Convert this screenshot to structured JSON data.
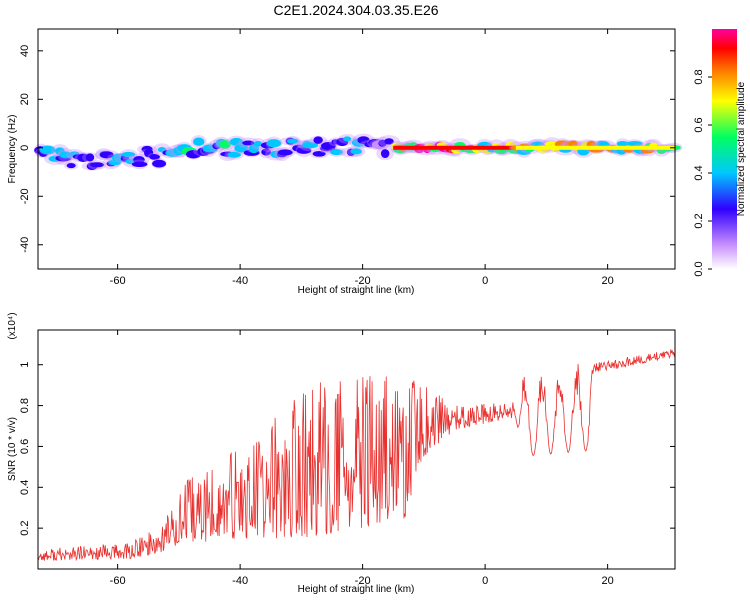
{
  "title": "C2E1.2024.304.03.35.E26",
  "chart_data": [
    {
      "type": "heatmap",
      "title": "C2E1.2024.304.03.35.E26",
      "xlabel": "Height of straight line (km)",
      "ylabel": "Frequency (Hz)",
      "xlim": [
        -73,
        31
      ],
      "ylim": [
        -50,
        49
      ],
      "xticks": [
        -60,
        -40,
        -20,
        0,
        20
      ],
      "yticks": [
        -40,
        -20,
        0,
        20,
        40
      ],
      "colorbar": {
        "label": "Normalized spectral amplitude",
        "range": [
          0.0,
          1.0
        ],
        "ticks": [
          0.0,
          0.2,
          0.4,
          0.6,
          0.8
        ],
        "colors": [
          "#ffffff",
          "#b070ff",
          "#3000ff",
          "#00c8ff",
          "#00ff60",
          "#ffff00",
          "#ff8000",
          "#ff0000",
          "#ff00a0"
        ]
      },
      "bands": [
        {
          "x0": -73,
          "x1": -50,
          "f_center": -4,
          "f_halfwidth": 6,
          "level": 0.45
        },
        {
          "x0": -50,
          "x1": -30,
          "f_center": 0,
          "f_halfwidth": 5,
          "level": 0.5
        },
        {
          "x0": -30,
          "x1": -15,
          "f_center": 1,
          "f_halfwidth": 6,
          "level": 0.45
        },
        {
          "x0": -15,
          "x1": 5,
          "f_center": 0,
          "f_halfwidth": 2,
          "level": 0.95
        },
        {
          "x0": 5,
          "x1": 31,
          "f_center": 0,
          "f_halfwidth": 3,
          "level": 0.75
        }
      ],
      "grid": false
    },
    {
      "type": "line",
      "xlabel": "Height of straight line (km)",
      "ylabel": "SNR (10 * v/v)",
      "y_multiplier": "(x10⁴)",
      "xlim": [
        -73,
        31
      ],
      "ylim": [
        0,
        1.17
      ],
      "xticks": [
        -60,
        -40,
        -20,
        0,
        20
      ],
      "yticks": [
        0.2,
        0.4,
        0.6,
        0.8,
        1.0
      ],
      "color": "#e8312f",
      "envelope": [
        {
          "x": -73,
          "base": 0.04,
          "amp": 0.06
        },
        {
          "x": -58,
          "base": 0.05,
          "amp": 0.08
        },
        {
          "x": -53,
          "base": 0.08,
          "amp": 0.14
        },
        {
          "x": -50,
          "base": 0.12,
          "amp": 0.3
        },
        {
          "x": -40,
          "base": 0.15,
          "amp": 0.45
        },
        {
          "x": -30,
          "base": 0.15,
          "amp": 0.75
        },
        {
          "x": -20,
          "base": 0.2,
          "amp": 0.75
        },
        {
          "x": -13,
          "base": 0.25,
          "amp": 0.7
        },
        {
          "x": -10,
          "base": 0.55,
          "amp": 0.35
        },
        {
          "x": -5,
          "base": 0.68,
          "amp": 0.12
        },
        {
          "x": 5,
          "base": 0.74,
          "amp": 0.08
        },
        {
          "x": 6,
          "base": 0.55,
          "amp": 0.45
        },
        {
          "x": 17,
          "base": 0.58,
          "amp": 0.45
        },
        {
          "x": 18,
          "base": 0.96,
          "amp": 0.05
        },
        {
          "x": 31,
          "base": 1.04,
          "amp": 0.04
        }
      ],
      "grid": false
    }
  ]
}
